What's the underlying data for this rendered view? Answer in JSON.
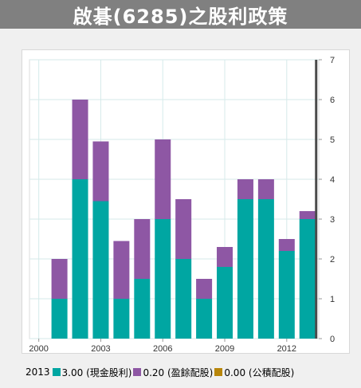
{
  "header": {
    "title": "啟碁(6285)之股利政策"
  },
  "legend": {
    "year": "2013",
    "items": [
      {
        "label": "3.00 (現金股利)",
        "color": "#00a6a2"
      },
      {
        "label": "0.20 (盈餘配股)",
        "color": "#8e57a4"
      },
      {
        "label": "0.00 (公積配股)",
        "color": "#b8860b"
      }
    ]
  },
  "chart_data": {
    "type": "bar",
    "stacked": true,
    "x": [
      2001,
      2002,
      2003,
      2004,
      2005,
      2006,
      2007,
      2008,
      2009,
      2010,
      2011,
      2012,
      2013
    ],
    "xlim": [
      1999.55,
      2013.55
    ],
    "x_ticks": [
      2000,
      2003,
      2006,
      2009,
      2012
    ],
    "ylim": [
      0,
      7
    ],
    "y_ticks": [
      0,
      1,
      2,
      3,
      4,
      5,
      6,
      7
    ],
    "y_axis_side": "right",
    "grid": true,
    "highlight_x": 2013,
    "series": [
      {
        "name": "現金股利",
        "color": "#00a6a2",
        "values": [
          1.0,
          4.0,
          3.45,
          1.0,
          1.5,
          3.0,
          2.0,
          1.0,
          1.8,
          3.5,
          3.5,
          2.2,
          3.0
        ]
      },
      {
        "name": "盈餘配股",
        "color": "#8e57a4",
        "values": [
          1.0,
          2.0,
          1.5,
          1.45,
          1.5,
          2.0,
          1.5,
          0.5,
          0.5,
          0.5,
          0.5,
          0.3,
          0.2
        ]
      },
      {
        "name": "公積配股",
        "color": "#b8860b",
        "values": [
          0,
          0,
          0,
          0,
          0,
          0,
          0,
          0,
          0,
          0,
          0,
          0,
          0
        ]
      }
    ]
  }
}
